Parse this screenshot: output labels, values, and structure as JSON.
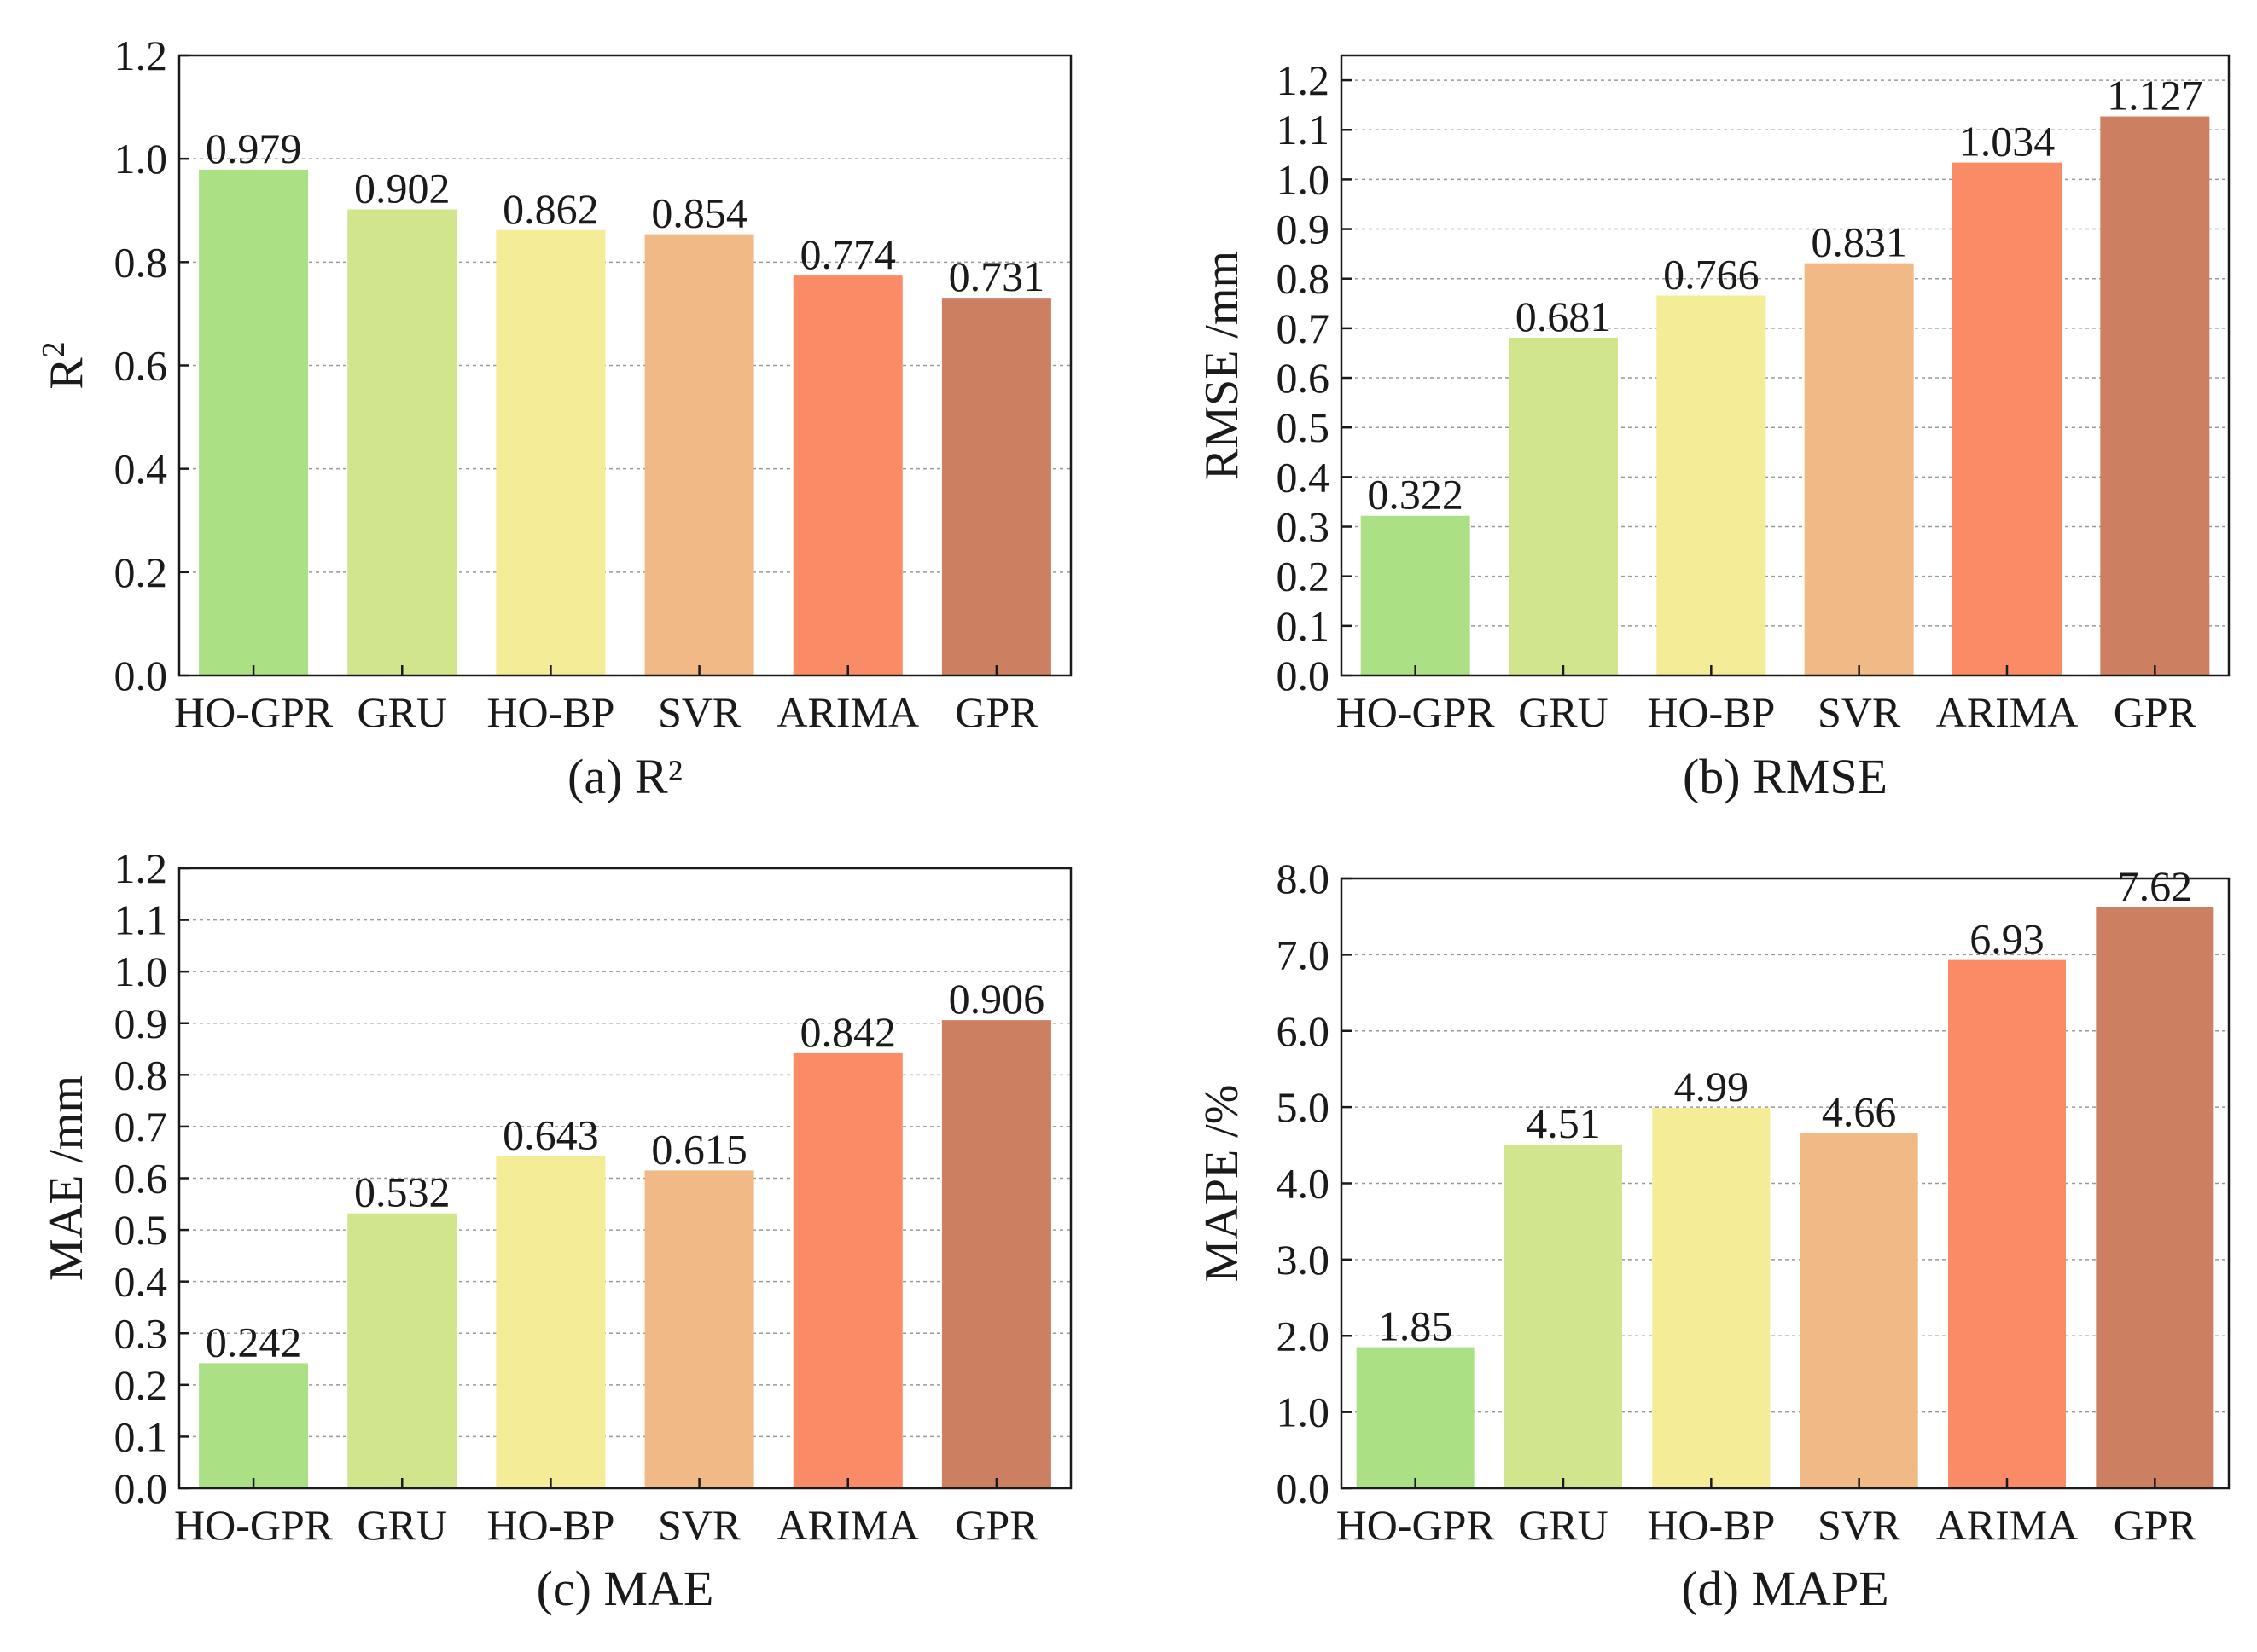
{
  "colors": [
    "#abe084",
    "#d1e68c",
    "#f4ec97",
    "#f0b985",
    "#f98c66",
    "#cd7f62"
  ],
  "chart_data": [
    {
      "type": "bar",
      "caption": "(a) R²",
      "ylabel": "R",
      "ylabel_sup": "2",
      "categories": [
        "HO-GPR",
        "GRU",
        "HO-BP",
        "SVR",
        "ARIMA",
        "GPR"
      ],
      "values": [
        0.979,
        0.902,
        0.862,
        0.854,
        0.774,
        0.731
      ],
      "value_labels": [
        "0.979",
        "0.902",
        "0.862",
        "0.854",
        "0.774",
        "0.731"
      ],
      "ylim": [
        0,
        1.2
      ],
      "yticks": [
        "0.0",
        "0.2",
        "0.4",
        "0.6",
        "0.8",
        "1.0",
        "1.2"
      ],
      "grid": true
    },
    {
      "type": "bar",
      "caption": "(b) RMSE",
      "ylabel": "RMSE /mm",
      "categories": [
        "HO-GPR",
        "GRU",
        "HO-BP",
        "SVR",
        "ARIMA",
        "GPR"
      ],
      "values": [
        0.322,
        0.681,
        0.766,
        0.831,
        1.034,
        1.127
      ],
      "value_labels": [
        "0.322",
        "0.681",
        "0.766",
        "0.831",
        "1.034",
        "1.127"
      ],
      "ylim": [
        0,
        1.25
      ],
      "yticks": [
        "0.0",
        "0.1",
        "0.2",
        "0.3",
        "0.4",
        "0.5",
        "0.6",
        "0.7",
        "0.8",
        "0.9",
        "1.0",
        "1.1",
        "1.2"
      ],
      "grid": true
    },
    {
      "type": "bar",
      "caption": "(c) MAE",
      "ylabel": "MAE /mm",
      "categories": [
        "HO-GPR",
        "GRU",
        "HO-BP",
        "SVR",
        "ARIMA",
        "GPR"
      ],
      "values": [
        0.242,
        0.532,
        0.643,
        0.615,
        0.842,
        0.906
      ],
      "value_labels": [
        "0.242",
        "0.532",
        "0.643",
        "0.615",
        "0.842",
        "0.906"
      ],
      "ylim": [
        0,
        1.2
      ],
      "yticks": [
        "0.0",
        "0.1",
        "0.2",
        "0.3",
        "0.4",
        "0.5",
        "0.6",
        "0.7",
        "0.8",
        "0.9",
        "1.0",
        "1.1",
        "1.2"
      ],
      "grid": true
    },
    {
      "type": "bar",
      "caption": "(d) MAPE",
      "ylabel": "MAPE /%",
      "categories": [
        "HO-GPR",
        "GRU",
        "HO-BP",
        "SVR",
        "ARIMA",
        "GPR"
      ],
      "values": [
        1.85,
        4.51,
        4.99,
        4.66,
        6.93,
        7.62
      ],
      "value_labels": [
        "1.85",
        "4.51",
        "4.99",
        "4.66",
        "6.93",
        "7.62"
      ],
      "ylim": [
        0,
        8.0
      ],
      "yticks": [
        "0.0",
        "1.0",
        "2.0",
        "3.0",
        "4.0",
        "5.0",
        "6.0",
        "7.0",
        "8.0"
      ],
      "grid": true
    }
  ]
}
